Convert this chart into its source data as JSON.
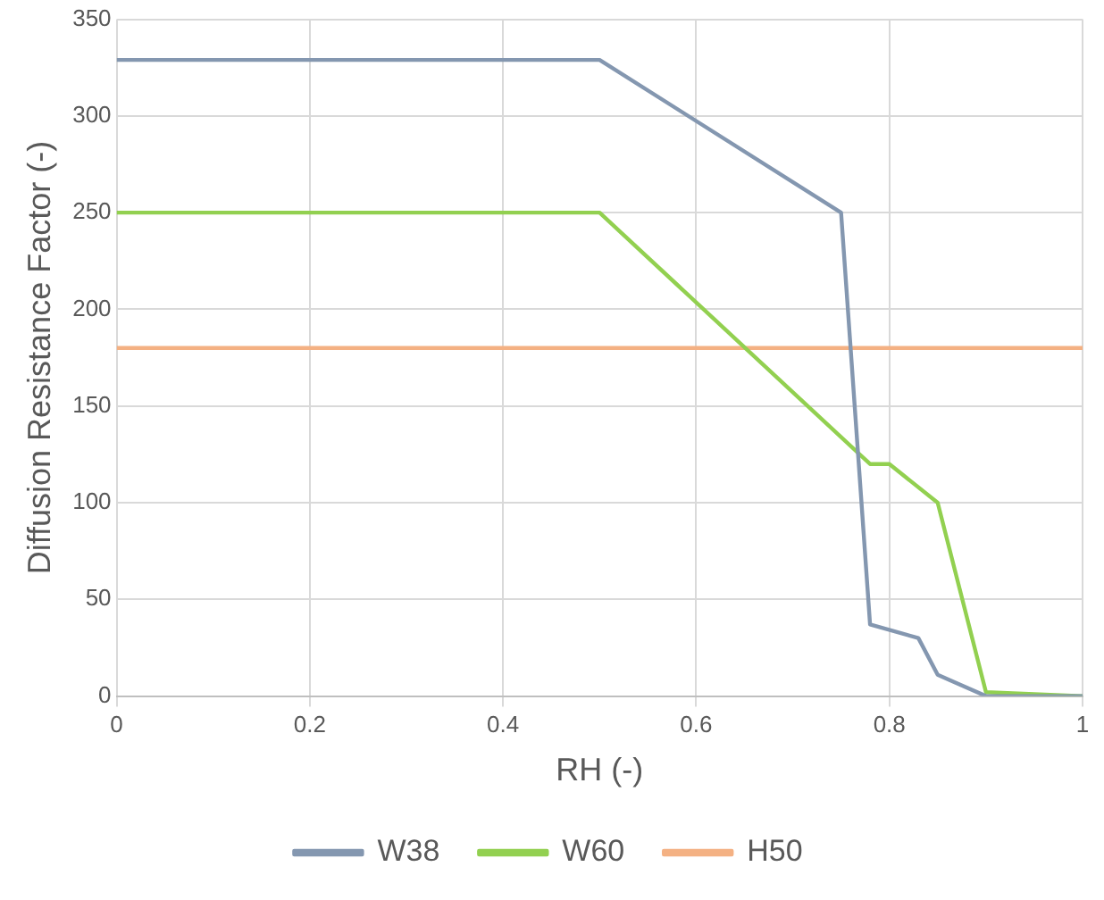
{
  "chart_data": {
    "type": "line",
    "xlabel": "RH (-)",
    "ylabel": "Diffusion Resistance Factor (-)",
    "xlim": [
      0,
      1
    ],
    "xticks": [
      0,
      0.2,
      0.4,
      0.6,
      0.8,
      1
    ],
    "ylim": [
      0,
      350
    ],
    "yticks": [
      0,
      50,
      100,
      150,
      200,
      250,
      300,
      350
    ],
    "grid": true,
    "legend": "bottom",
    "marker": "none",
    "line_style": "solid",
    "series": [
      {
        "name": "W38",
        "color": "#8497b0",
        "x": [
          0,
          0.5,
          0.75,
          0.78,
          0.83,
          0.85,
          0.9,
          1
        ],
        "values": [
          329,
          329,
          250,
          37,
          30,
          11,
          0,
          0
        ]
      },
      {
        "name": "W60",
        "color": "#92d050",
        "x": [
          0,
          0.5,
          0.78,
          0.8,
          0.85,
          0.9,
          1
        ],
        "values": [
          250,
          250,
          120,
          120,
          100,
          2,
          0
        ]
      },
      {
        "name": "H50",
        "color": "#f4b183",
        "x": [
          0,
          1
        ],
        "values": [
          180,
          180
        ]
      }
    ]
  }
}
